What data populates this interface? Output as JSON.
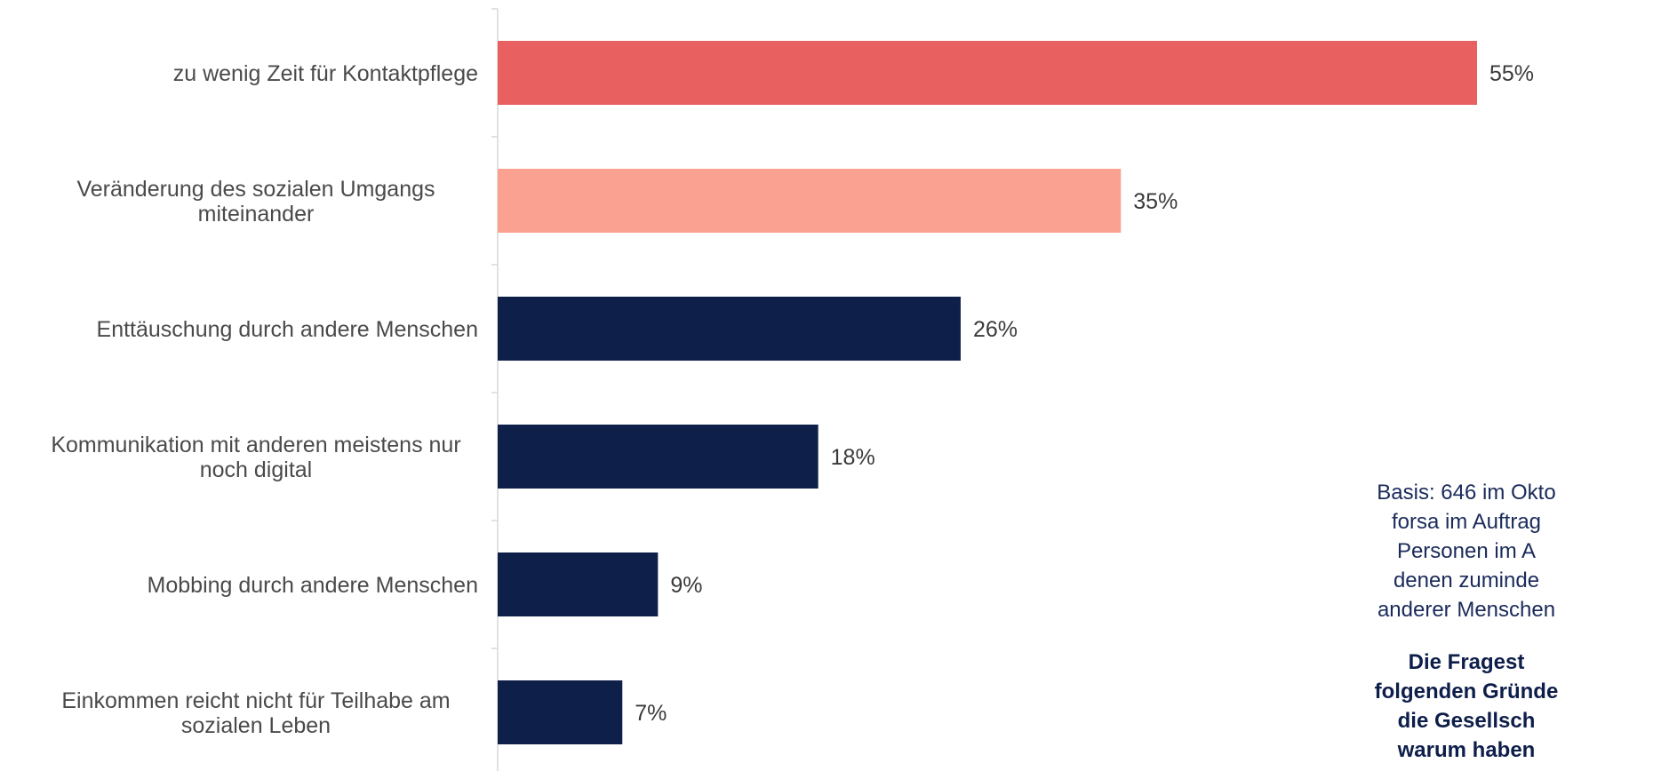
{
  "chart_data": {
    "type": "bar",
    "orientation": "horizontal",
    "categories": [
      [
        "zu wenig Zeit für Kontaktpflege"
      ],
      [
        "Veränderung des sozialen Umgangs",
        "miteinander"
      ],
      [
        "Enttäuschung durch andere Menschen"
      ],
      [
        "Kommunikation mit anderen meistens nur",
        "noch digital"
      ],
      [
        "Mobbing durch andere Menschen"
      ],
      [
        "Einkommen reicht nicht für Teilhabe am",
        "sozialen Leben"
      ]
    ],
    "values": [
      55,
      35,
      26,
      18,
      9,
      7
    ],
    "value_labels": [
      "55%",
      "35%",
      "26%",
      "18%",
      "9%",
      "7%"
    ],
    "xlim": [
      0,
      55
    ],
    "colors": [
      "#e96060",
      "#fba192",
      "#0e1f4a",
      "#0e1f4a",
      "#0e1f4a",
      "#0e1f4a"
    ],
    "grid": false
  },
  "note": {
    "basis_lines": [
      "Basis: 646 im Okto",
      "forsa im Auftrag",
      "Personen im A",
      "denen zuminde",
      "anderer Menschen"
    ],
    "question_lines": [
      "Die Fragest",
      "folgenden Gründe",
      "die Gesellsch",
      "warum haben"
    ]
  }
}
